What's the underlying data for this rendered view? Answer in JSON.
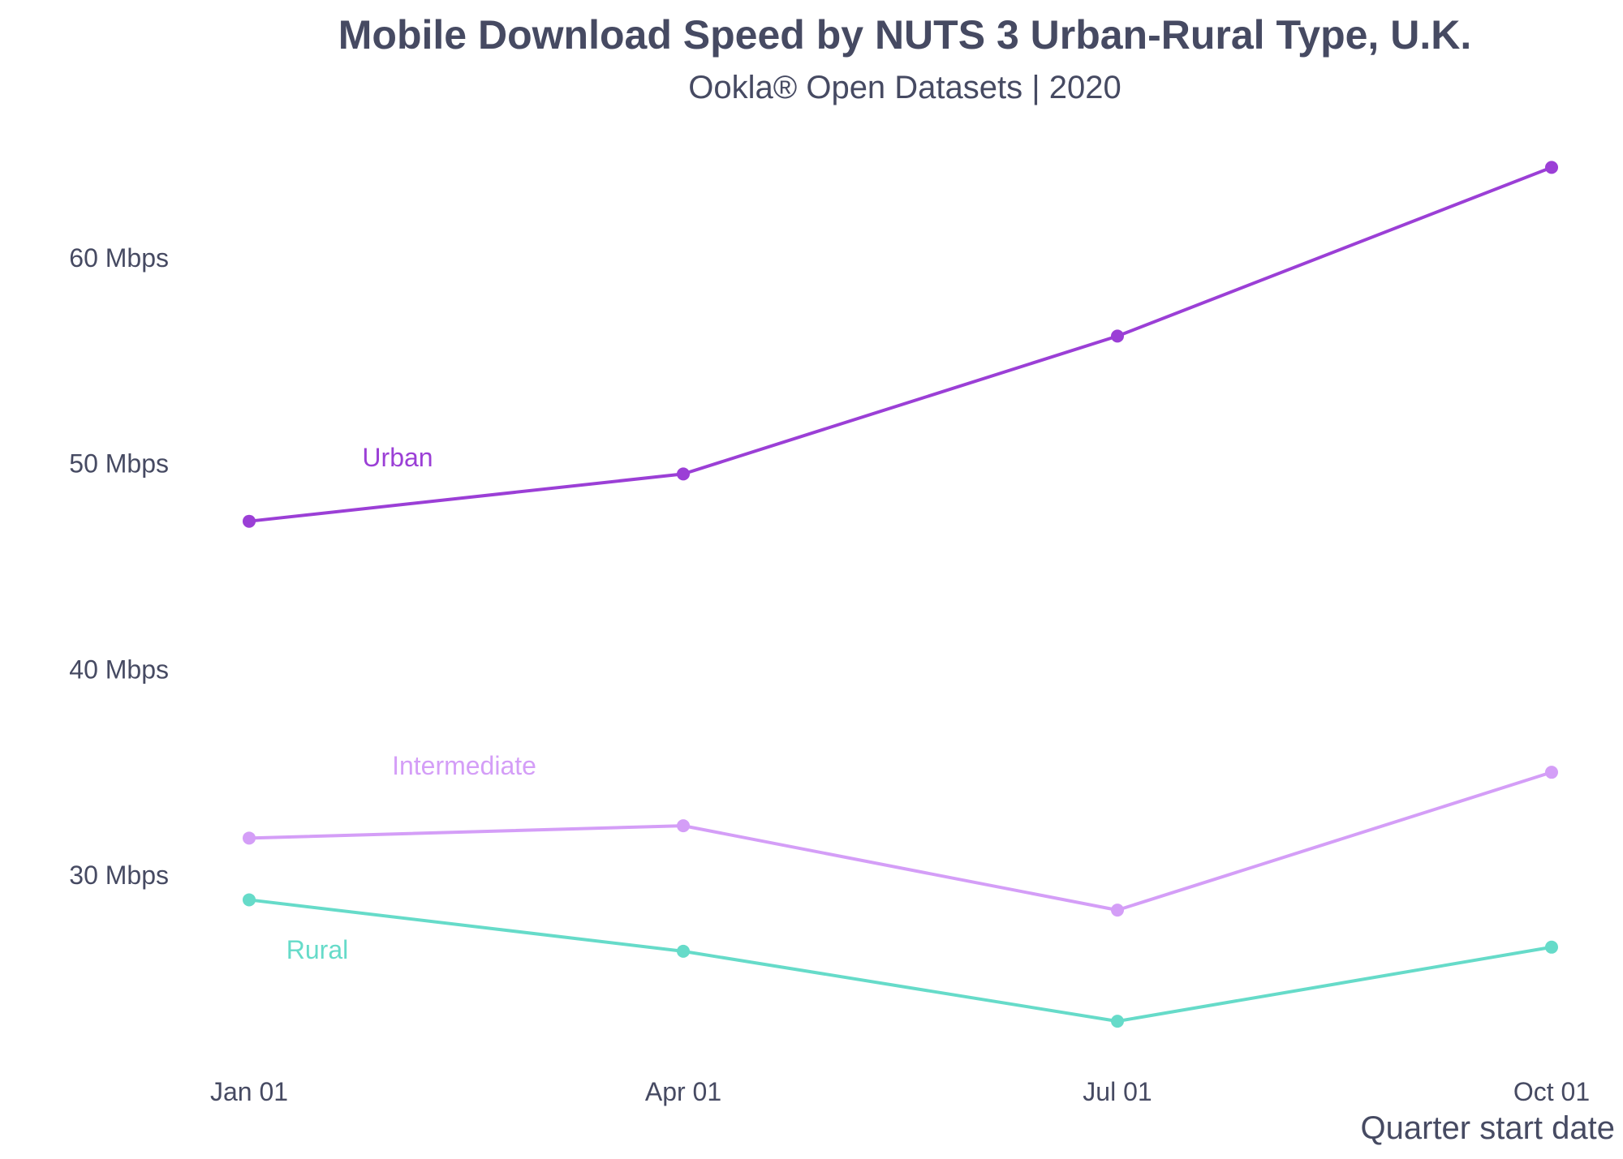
{
  "chart_data": {
    "type": "line",
    "title": "Mobile Download Speed by NUTS 3 Urban-Rural Type, U.K.",
    "subtitle": "Ookla® Open Datasets | 2020",
    "xlabel": "Quarter start date",
    "ylabel": "",
    "x": [
      "Jan 01",
      "Apr 01",
      "Jul 01",
      "Oct 01"
    ],
    "y_ticks": [
      {
        "value": 30,
        "label": "30 Mbps"
      },
      {
        "value": 40,
        "label": "40 Mbps"
      },
      {
        "value": 50,
        "label": "50 Mbps"
      },
      {
        "value": 60,
        "label": "60 Mbps"
      }
    ],
    "ylim": [
      21,
      66
    ],
    "grid": false,
    "legend": "none",
    "series": [
      {
        "name": "Urban",
        "color": "#9b3fd6",
        "values": [
          47.2,
          49.5,
          56.2,
          64.4
        ]
      },
      {
        "name": "Intermediate",
        "color": "#d49ef7",
        "values": [
          31.8,
          32.4,
          28.3,
          35.0
        ]
      },
      {
        "name": "Rural",
        "color": "#66dbc9",
        "values": [
          28.8,
          26.3,
          22.9,
          26.5
        ]
      }
    ]
  }
}
